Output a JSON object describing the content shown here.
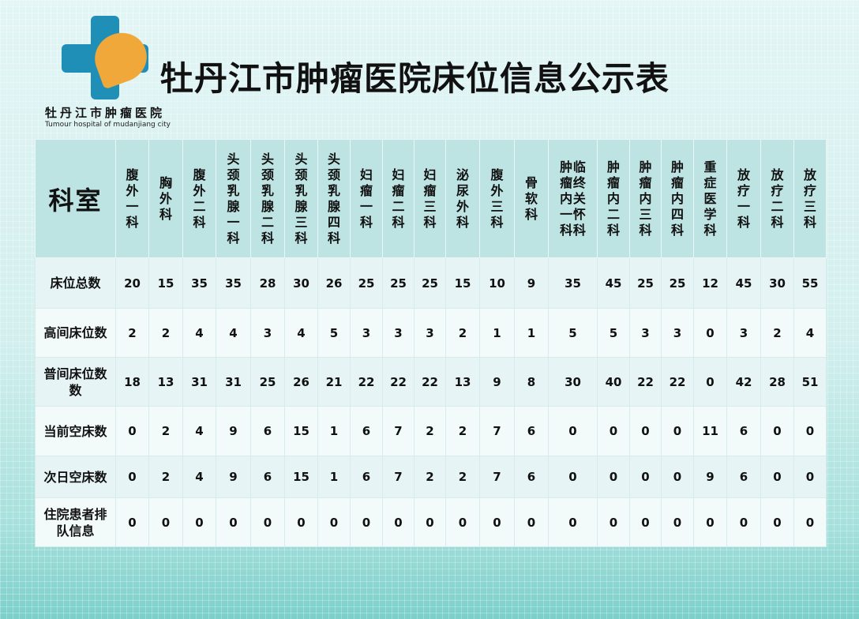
{
  "header": {
    "title": "牡丹江市肿瘤医院床位信息公示表",
    "hospital_name_cn": "牡丹江市肿瘤医院",
    "hospital_name_en": "Tumour hospital of mudanjiang city"
  },
  "colors": {
    "header_bg": "#bde3e3",
    "logo_blue": "#1f8fb8",
    "logo_orange": "#f0a83a"
  },
  "table": {
    "corner": "科室",
    "departments": [
      "腹外一科",
      "胸外科",
      "腹外二科",
      "头颈乳腺一科",
      "头颈乳腺二科",
      "头颈乳腺三科",
      "头颈乳腺四科",
      "妇瘤一科",
      "妇瘤二科",
      "妇瘤三科",
      "泌尿外科",
      "腹外三科",
      "骨软科",
      [
        "肿瘤内一科",
        "临终关怀科"
      ],
      "肿瘤内二科",
      "肿瘤内三科",
      "肿瘤内四科",
      "重症医学科",
      "放疗一科",
      "放疗二科",
      "放疗三科"
    ],
    "rows": [
      {
        "label": "床位总数",
        "values": [
          20,
          15,
          35,
          35,
          28,
          30,
          26,
          25,
          25,
          25,
          15,
          10,
          9,
          35,
          45,
          25,
          25,
          12,
          45,
          30,
          55
        ]
      },
      {
        "label": "高间床位数",
        "values": [
          2,
          2,
          4,
          4,
          3,
          4,
          5,
          3,
          3,
          3,
          2,
          1,
          1,
          5,
          5,
          3,
          3,
          0,
          3,
          2,
          4
        ]
      },
      {
        "label": "普间床位数数",
        "values": [
          18,
          13,
          31,
          31,
          25,
          26,
          21,
          22,
          22,
          22,
          13,
          9,
          8,
          30,
          40,
          22,
          22,
          0,
          42,
          28,
          51
        ]
      },
      {
        "label": "当前空床数",
        "values": [
          0,
          2,
          4,
          9,
          6,
          15,
          1,
          6,
          7,
          2,
          2,
          7,
          6,
          0,
          0,
          0,
          0,
          11,
          6,
          0,
          0
        ]
      },
      {
        "label": "次日空床数",
        "values": [
          0,
          2,
          4,
          9,
          6,
          15,
          1,
          6,
          7,
          2,
          2,
          7,
          6,
          0,
          0,
          0,
          0,
          9,
          6,
          0,
          0
        ]
      },
      {
        "label": "住院患者排队信息",
        "values": [
          0,
          0,
          0,
          0,
          0,
          0,
          0,
          0,
          0,
          0,
          0,
          0,
          0,
          0,
          0,
          0,
          0,
          0,
          0,
          0,
          0
        ]
      }
    ]
  }
}
